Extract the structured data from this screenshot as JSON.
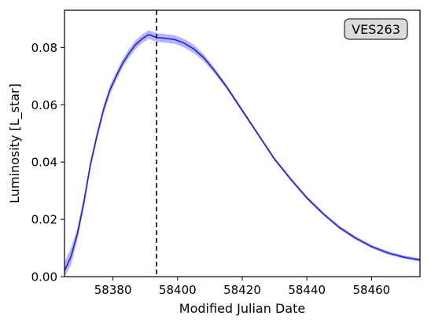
{
  "chart_data": {
    "type": "line",
    "title": "",
    "xlabel": "Modified Julian Date",
    "ylabel": "Luminosity [L_star]",
    "xlim": [
      58365,
      58475
    ],
    "ylim": [
      0.0,
      0.093
    ],
    "xticks": [
      58380,
      58400,
      58420,
      58440,
      58460
    ],
    "yticks": [
      0.0,
      0.02,
      0.04,
      0.06,
      0.08
    ],
    "xtick_labels": [
      "58380",
      "58400",
      "58420",
      "58440",
      "58460"
    ],
    "ytick_labels": [
      "0.00",
      "0.02",
      "0.04",
      "0.06",
      "0.08"
    ],
    "grid": false,
    "annotation_box": "VES263",
    "annotation_position": "top-right",
    "peak_marker_x": 58393.5,
    "colors": {
      "line": "#1f1fe6",
      "band": "#a8a8ff",
      "marker": "#000000",
      "box_fill": "#dcdcdc"
    },
    "series": [
      {
        "x": [
          58365,
          58367,
          58369,
          58371,
          58373,
          58375,
          58377,
          58379,
          58381,
          58383,
          58385,
          58387,
          58389,
          58391,
          58393.5,
          58396,
          58399,
          58402,
          58405,
          58408,
          58411,
          58415,
          58420,
          58425,
          58430,
          58435,
          58440,
          58445,
          58450,
          58455,
          58460,
          58465,
          58470,
          58475
        ],
        "y": [
          0.002,
          0.007,
          0.015,
          0.026,
          0.039,
          0.049,
          0.058,
          0.065,
          0.07,
          0.0745,
          0.078,
          0.081,
          0.083,
          0.0845,
          0.0835,
          0.0832,
          0.0828,
          0.0815,
          0.0795,
          0.0765,
          0.0725,
          0.0665,
          0.058,
          0.0495,
          0.041,
          0.034,
          0.0275,
          0.022,
          0.0172,
          0.0135,
          0.0105,
          0.0083,
          0.0068,
          0.0058
        ],
        "band": [
          0.003,
          0.003,
          0.002,
          0.002,
          0.0015,
          0.0015,
          0.0015,
          0.0015,
          0.0015,
          0.0015,
          0.0015,
          0.0015,
          0.0015,
          0.0015,
          0.0015,
          0.0015,
          0.0015,
          0.0015,
          0.0015,
          0.0012,
          0.001,
          0.0008,
          0.0007,
          0.0006,
          0.0006,
          0.0006,
          0.0006,
          0.0006,
          0.0006,
          0.0006,
          0.0006,
          0.0006,
          0.0006,
          0.0006
        ]
      }
    ]
  }
}
